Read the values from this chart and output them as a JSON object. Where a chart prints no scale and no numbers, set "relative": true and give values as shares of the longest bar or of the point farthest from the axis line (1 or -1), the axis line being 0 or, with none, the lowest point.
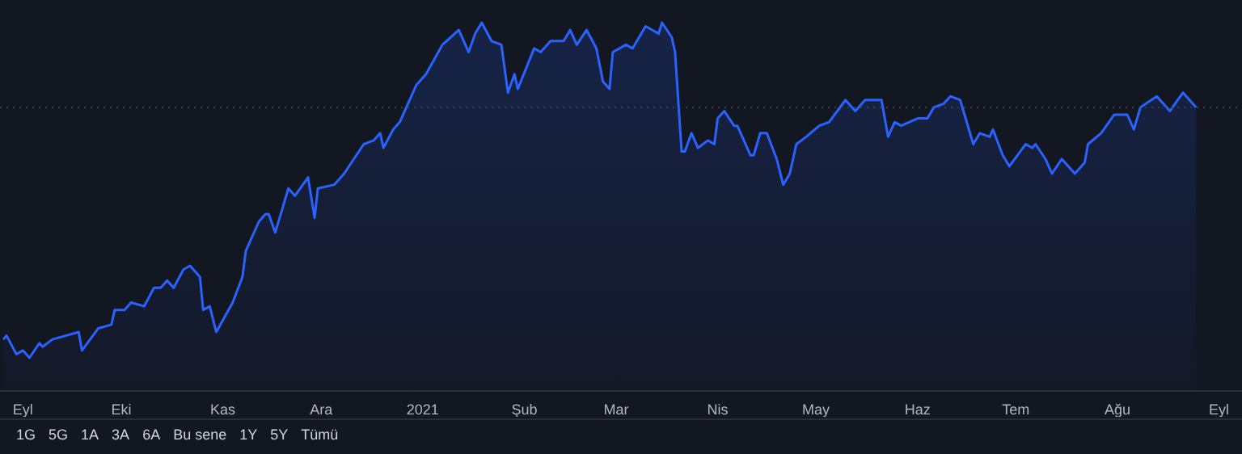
{
  "chart_data": {
    "type": "area",
    "relative": true,
    "color": "#2962ff",
    "line_style": "solid",
    "x": [
      "2020-08-26",
      "2020-08-27",
      "2020-08-30",
      "2020-09-01",
      "2020-09-03",
      "2020-09-06",
      "2020-09-07",
      "2020-09-10",
      "2020-09-14",
      "2020-09-18",
      "2020-09-19",
      "2020-09-24",
      "2020-09-28",
      "2020-09-29",
      "2020-10-02",
      "2020-10-04",
      "2020-10-08",
      "2020-10-11",
      "2020-10-13",
      "2020-10-15",
      "2020-10-17",
      "2020-10-20",
      "2020-10-22",
      "2020-10-25",
      "2020-10-26",
      "2020-10-28",
      "2020-10-30",
      "2020-11-04",
      "2020-11-07",
      "2020-11-08",
      "2020-11-12",
      "2020-11-14",
      "2020-11-15",
      "2020-11-17",
      "2020-11-21",
      "2020-11-23",
      "2020-11-27",
      "2020-11-29",
      "2020-11-30",
      "2020-12-05",
      "2020-12-08",
      "2020-12-14",
      "2020-12-17",
      "2020-12-19",
      "2020-12-20",
      "2020-12-23",
      "2020-12-25",
      "2020-12-27",
      "2020-12-30",
      "2021-01-02",
      "2021-01-07",
      "2021-01-12",
      "2021-01-15",
      "2021-01-17",
      "2021-01-19",
      "2021-01-22",
      "2021-01-25",
      "2021-01-27",
      "2021-01-29",
      "2021-01-30",
      "2021-02-04",
      "2021-02-06",
      "2021-02-09",
      "2021-02-13",
      "2021-02-15",
      "2021-02-17",
      "2021-02-20",
      "2021-02-23",
      "2021-02-25",
      "2021-02-27",
      "2021-02-28",
      "2021-03-04",
      "2021-03-06",
      "2021-03-10",
      "2021-03-14",
      "2021-03-15",
      "2021-03-18",
      "2021-03-19",
      "2021-03-21",
      "2021-03-22",
      "2021-03-24",
      "2021-03-26",
      "2021-03-29",
      "2021-03-31",
      "2021-04-01",
      "2021-04-03",
      "2021-04-06",
      "2021-04-07",
      "2021-04-11",
      "2021-04-12",
      "2021-04-14",
      "2021-04-16",
      "2021-04-19",
      "2021-04-21",
      "2021-04-23",
      "2021-04-25",
      "2021-04-28",
      "2021-05-02",
      "2021-05-05",
      "2021-05-10",
      "2021-05-13",
      "2021-05-16",
      "2021-05-19",
      "2021-05-21",
      "2021-05-23",
      "2021-05-25",
      "2021-05-27",
      "2021-06-01",
      "2021-06-04",
      "2021-06-06",
      "2021-06-09",
      "2021-06-11",
      "2021-06-14",
      "2021-06-18",
      "2021-06-20",
      "2021-06-23",
      "2021-06-24",
      "2021-06-27",
      "2021-06-29",
      "2021-07-04",
      "2021-07-06",
      "2021-07-07",
      "2021-07-10",
      "2021-07-12",
      "2021-07-15",
      "2021-07-19",
      "2021-07-22",
      "2021-07-23",
      "2021-07-27",
      "2021-07-31",
      "2021-08-04",
      "2021-08-06",
      "2021-08-08",
      "2021-08-13",
      "2021-08-17",
      "2021-08-21",
      "2021-08-25"
    ],
    "values": [
      0.14,
      0.15,
      0.1,
      0.11,
      0.09,
      0.13,
      0.12,
      0.14,
      0.15,
      0.16,
      0.11,
      0.17,
      0.18,
      0.22,
      0.22,
      0.24,
      0.23,
      0.28,
      0.28,
      0.3,
      0.28,
      0.33,
      0.34,
      0.31,
      0.22,
      0.23,
      0.16,
      0.24,
      0.31,
      0.38,
      0.46,
      0.48,
      0.48,
      0.43,
      0.55,
      0.53,
      0.58,
      0.47,
      0.55,
      0.56,
      0.59,
      0.67,
      0.68,
      0.7,
      0.66,
      0.71,
      0.73,
      0.77,
      0.83,
      0.86,
      0.94,
      0.98,
      0.92,
      0.97,
      1.0,
      0.95,
      0.94,
      0.81,
      0.86,
      0.82,
      0.93,
      0.92,
      0.95,
      0.95,
      0.98,
      0.94,
      0.98,
      0.93,
      0.84,
      0.82,
      0.92,
      0.94,
      0.93,
      0.99,
      0.97,
      1.0,
      0.96,
      0.92,
      0.65,
      0.65,
      0.7,
      0.66,
      0.68,
      0.67,
      0.74,
      0.76,
      0.72,
      0.72,
      0.64,
      0.64,
      0.7,
      0.7,
      0.63,
      0.56,
      0.59,
      0.67,
      0.69,
      0.72,
      0.73,
      0.79,
      0.76,
      0.79,
      0.79,
      0.79,
      0.69,
      0.73,
      0.72,
      0.74,
      0.74,
      0.77,
      0.78,
      0.8,
      0.79,
      0.67,
      0.7,
      0.69,
      0.71,
      0.64,
      0.61,
      0.67,
      0.66,
      0.67,
      0.63,
      0.59,
      0.63,
      0.59,
      0.62,
      0.67,
      0.7,
      0.75,
      0.75,
      0.71,
      0.77,
      0.8,
      0.76,
      0.81,
      0.77
    ],
    "xlim": [
      "2020-08-25",
      "2021-09-08"
    ],
    "xticks": [
      {
        "value": "2020-09-01",
        "label": "Eyl"
      },
      {
        "value": "2020-10-01",
        "label": "Eki"
      },
      {
        "value": "2020-11-01",
        "label": "Kas"
      },
      {
        "value": "2020-12-01",
        "label": "Ara"
      },
      {
        "value": "2021-01-01",
        "label": "2021"
      },
      {
        "value": "2021-02-01",
        "label": "Şub"
      },
      {
        "value": "2021-03-01",
        "label": "Mar"
      },
      {
        "value": "2021-04-01",
        "label": "Nis"
      },
      {
        "value": "2021-05-01",
        "label": "May"
      },
      {
        "value": "2021-06-01",
        "label": "Haz"
      },
      {
        "value": "2021-07-01",
        "label": "Tem"
      },
      {
        "value": "2021-08-01",
        "label": "Ağu"
      },
      {
        "value": "2021-09-01",
        "label": "Eyl"
      }
    ],
    "ref_lines": [
      {
        "axis": "y",
        "value": 0.77,
        "color": "#363c4e",
        "line_style": "dotted"
      }
    ],
    "annotations": [
      "1G",
      "5G",
      "1A",
      "3A",
      "6A",
      "Bu sene",
      "1Y",
      "5Y",
      "Tümü"
    ]
  }
}
